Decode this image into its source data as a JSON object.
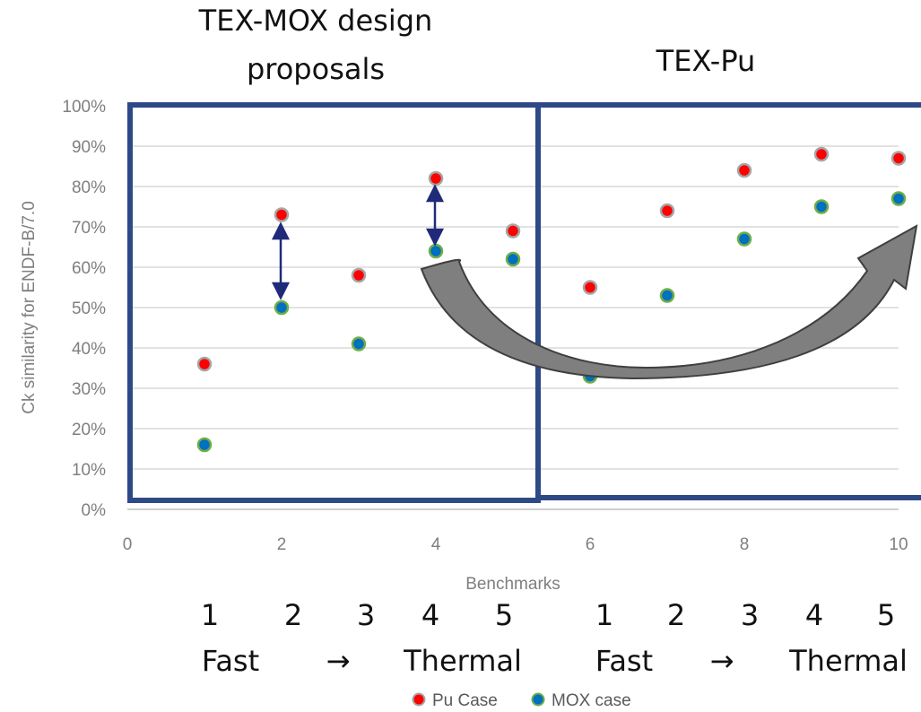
{
  "chart_data": {
    "type": "scatter",
    "xlabel": "Benchmarks",
    "ylabel": "Ck similarity for ENDF-B/7.0",
    "xlim": [
      0,
      10
    ],
    "ylim": [
      0,
      1
    ],
    "x_ticks": [
      "0",
      "2",
      "4",
      "6",
      "8",
      "10"
    ],
    "y_ticks": [
      "0%",
      "10%",
      "20%",
      "30%",
      "40%",
      "50%",
      "60%",
      "70%",
      "80%",
      "90%",
      "100%"
    ],
    "grid": "horizontal",
    "legend_position": "bottom",
    "series": [
      {
        "name": "Pu Case",
        "color": "#ff0000",
        "x": [
          1,
          2,
          3,
          4,
          5,
          6,
          7,
          8,
          9,
          10
        ],
        "y": [
          0.36,
          0.73,
          0.58,
          0.82,
          0.69,
          0.55,
          0.74,
          0.84,
          0.88,
          0.87
        ]
      },
      {
        "name": "MOX case",
        "color": "#0070c0",
        "x": [
          1,
          2,
          3,
          4,
          5,
          6,
          7,
          8,
          9,
          10
        ],
        "y": [
          0.16,
          0.5,
          0.41,
          0.64,
          0.62,
          0.33,
          0.53,
          0.67,
          0.75,
          0.77
        ]
      }
    ],
    "annotations": {
      "group_left": "TEX-MOX design proposals",
      "group_right": "TEX-Pu",
      "benchmark_numbers": [
        "1",
        "2",
        "3",
        "4",
        "5",
        "1",
        "2",
        "3",
        "4",
        "5"
      ],
      "spectrum_labels": [
        "Fast",
        "→",
        "Thermal",
        "Fast",
        "→",
        "Thermal"
      ]
    }
  },
  "colors": {
    "box": "#2e4a86",
    "double_arrow": "#1f2a7a",
    "curved_arrow": "#7f7f7f",
    "gridline": "#d9d9d9"
  }
}
